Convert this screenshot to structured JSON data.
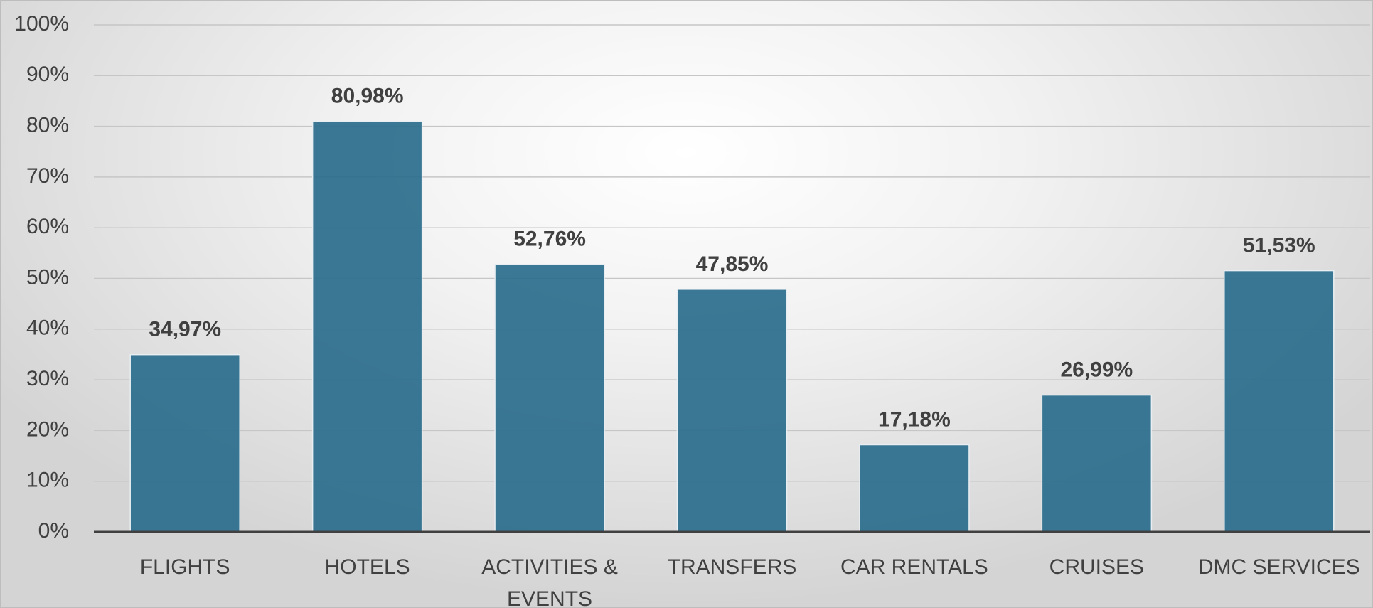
{
  "chart_data": {
    "type": "bar",
    "categories": [
      "FLIGHTS",
      "HOTELS",
      "ACTIVITIES & EVENTS",
      "TRANSFERS",
      "CAR RENTALS",
      "CRUISES",
      "DMC SERVICES"
    ],
    "values": [
      34.97,
      80.98,
      52.76,
      47.85,
      17.18,
      26.99,
      51.53
    ],
    "value_labels": [
      "34,97%",
      "80,98%",
      "52,76%",
      "47,85%",
      "17,18%",
      "26,99%",
      "51,53%"
    ],
    "color": "#2a6d8c",
    "ylim": [
      0,
      100
    ],
    "yticks": [
      {
        "value": 0,
        "label": "0%"
      },
      {
        "value": 10,
        "label": "10%"
      },
      {
        "value": 20,
        "label": "20%"
      },
      {
        "value": 30,
        "label": "30%"
      },
      {
        "value": 40,
        "label": "40%"
      },
      {
        "value": 50,
        "label": "50%"
      },
      {
        "value": 60,
        "label": "60%"
      },
      {
        "value": 70,
        "label": "70%"
      },
      {
        "value": 80,
        "label": "80%"
      },
      {
        "value": 90,
        "label": "90%"
      },
      {
        "value": 100,
        "label": "100%"
      }
    ],
    "grid": true
  }
}
